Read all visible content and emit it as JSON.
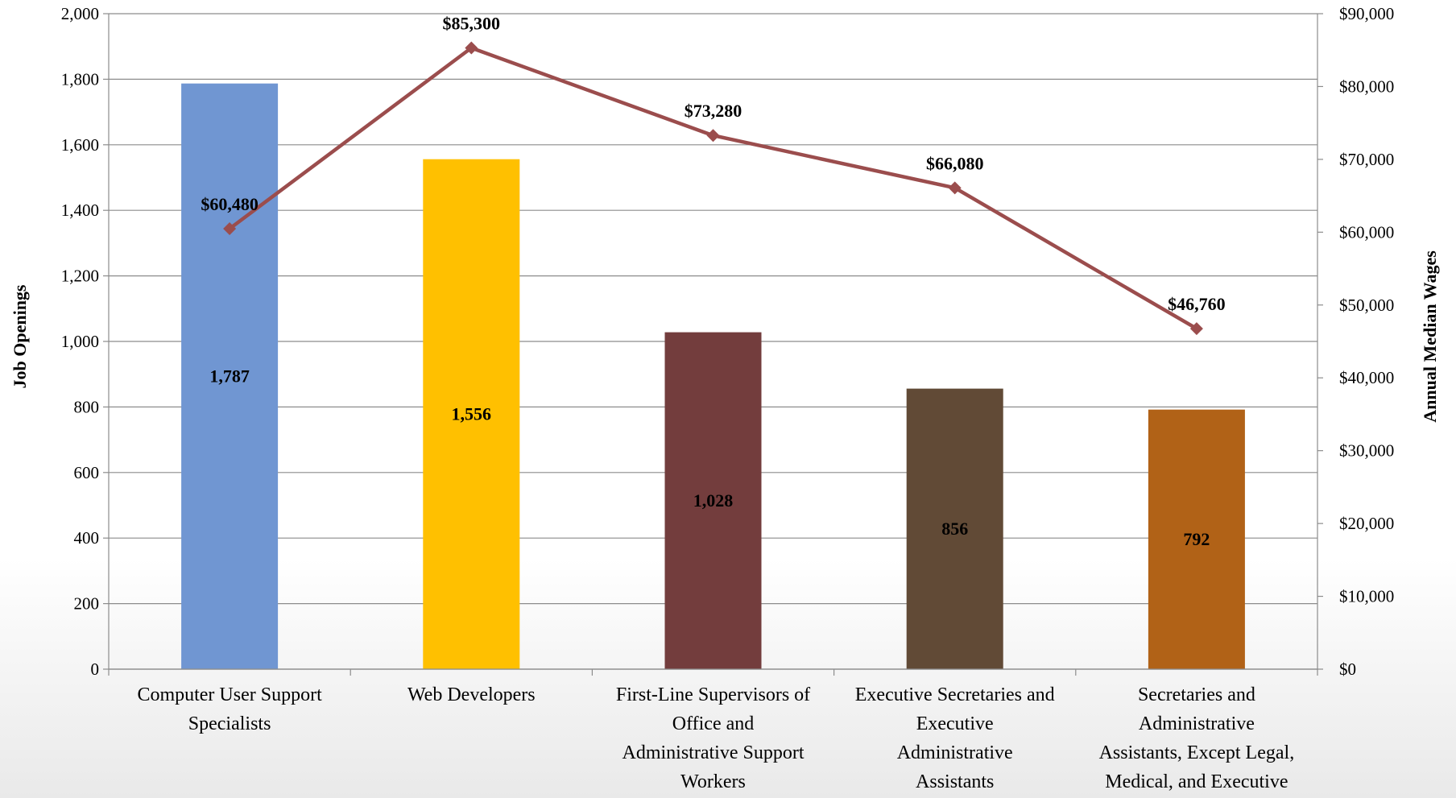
{
  "chart_data": {
    "type": "bar",
    "categories": [
      [
        "Computer User Support",
        "Specialists"
      ],
      [
        "Web Developers"
      ],
      [
        "First-Line Supervisors of",
        "Office and",
        "Administrative Support",
        "Workers"
      ],
      [
        "Executive Secretaries and",
        "Executive",
        "Administrative",
        "Assistants"
      ],
      [
        "Secretaries and",
        "Administrative",
        "Assistants, Except Legal,",
        "Medical, and Executive"
      ]
    ],
    "series": [
      {
        "name": "Job Openings",
        "type": "bar",
        "axis": "left",
        "values": [
          1787,
          1556,
          1028,
          856,
          792
        ],
        "labels": [
          "1,787",
          "1,556",
          "1,028",
          "856",
          "792"
        ],
        "colors": [
          "#7096D2",
          "#FFC000",
          "#733D3D",
          "#614A36",
          "#B16217"
        ]
      },
      {
        "name": "Annual Median Wages",
        "type": "line",
        "axis": "right",
        "values": [
          60480,
          85300,
          73280,
          66080,
          46760
        ],
        "labels": [
          "$60,480",
          "$85,300",
          "$73,280",
          "$66,080",
          "$46,760"
        ],
        "color": "#9B4D4D"
      }
    ],
    "ylabel": "Job Openings",
    "y2label": "Annual Median Wages",
    "ylim": [
      0,
      2000
    ],
    "y2lim": [
      0,
      90000
    ],
    "yticks": [
      "0",
      "200",
      "400",
      "600",
      "800",
      "1,000",
      "1,200",
      "1,400",
      "1,600",
      "1,800",
      "2,000"
    ],
    "y2ticks": [
      "$0",
      "$10,000",
      "$20,000",
      "$30,000",
      "$40,000",
      "$50,000",
      "$60,000",
      "$70,000",
      "$80,000",
      "$90,000"
    ],
    "grid": true
  }
}
